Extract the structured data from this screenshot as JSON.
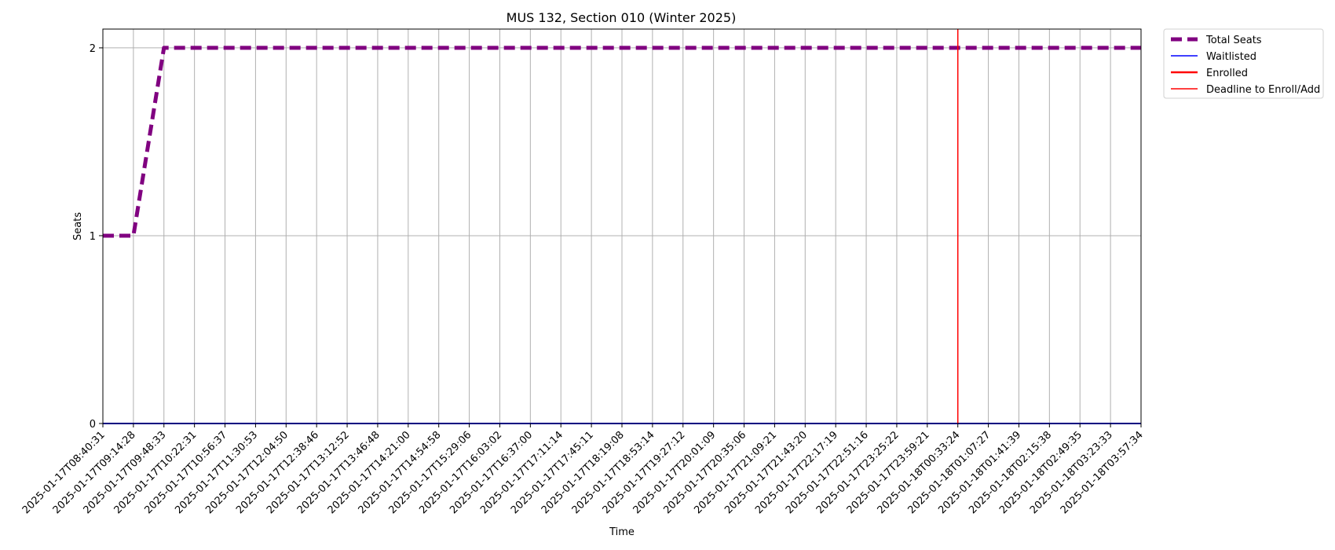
{
  "chart_data": {
    "type": "line",
    "title": "MUS 132, Section 010 (Winter 2025)",
    "xlabel": "Time",
    "ylabel": "Seats",
    "ylim": [
      0,
      2.1
    ],
    "yticks": [
      0,
      1,
      2
    ],
    "grid": true,
    "legend_position": "outside-top-right",
    "x": [
      "2025-01-17T08:40:31",
      "2025-01-17T09:14:28",
      "2025-01-17T09:48:33",
      "2025-01-17T10:22:31",
      "2025-01-17T10:56:37",
      "2025-01-17T11:30:53",
      "2025-01-17T12:04:50",
      "2025-01-17T12:38:46",
      "2025-01-17T13:12:52",
      "2025-01-17T13:46:48",
      "2025-01-17T14:21:00",
      "2025-01-17T14:54:58",
      "2025-01-17T15:29:06",
      "2025-01-17T16:03:02",
      "2025-01-17T16:37:00",
      "2025-01-17T17:11:14",
      "2025-01-17T17:45:11",
      "2025-01-17T18:19:08",
      "2025-01-17T18:53:14",
      "2025-01-17T19:27:12",
      "2025-01-17T20:01:09",
      "2025-01-17T20:35:06",
      "2025-01-17T21:09:21",
      "2025-01-17T21:43:20",
      "2025-01-17T22:17:19",
      "2025-01-17T22:51:16",
      "2025-01-17T23:25:22",
      "2025-01-17T23:59:21",
      "2025-01-18T00:33:24",
      "2025-01-18T01:07:27",
      "2025-01-18T01:41:39",
      "2025-01-18T02:15:38",
      "2025-01-18T02:49:35",
      "2025-01-18T03:23:33",
      "2025-01-18T03:57:34"
    ],
    "series": [
      {
        "name": "Total Seats",
        "color": "#800080",
        "style": "dashed",
        "values": [
          1,
          1,
          2,
          2,
          2,
          2,
          2,
          2,
          2,
          2,
          2,
          2,
          2,
          2,
          2,
          2,
          2,
          2,
          2,
          2,
          2,
          2,
          2,
          2,
          2,
          2,
          2,
          2,
          2,
          2,
          2,
          2,
          2,
          2,
          2
        ]
      },
      {
        "name": "Waitlisted",
        "color": "#0000ff",
        "style": "solid",
        "values": [
          0,
          0,
          0,
          0,
          0,
          0,
          0,
          0,
          0,
          0,
          0,
          0,
          0,
          0,
          0,
          0,
          0,
          0,
          0,
          0,
          0,
          0,
          0,
          0,
          0,
          0,
          0,
          0,
          0,
          0,
          0,
          0,
          0,
          0,
          0
        ]
      },
      {
        "name": "Enrolled",
        "color": "#ff0000",
        "style": "solid",
        "values": [
          0,
          0,
          0,
          0,
          0,
          0,
          0,
          0,
          0,
          0,
          0,
          0,
          0,
          0,
          0,
          0,
          0,
          0,
          0,
          0,
          0,
          0,
          0,
          0,
          0,
          0,
          0,
          0,
          0,
          0,
          0,
          0,
          0,
          0,
          0
        ]
      }
    ],
    "vline": {
      "name": "Deadline to Enroll/Add",
      "color": "#ff0000",
      "x": "2025-01-18T00:33:24"
    }
  }
}
